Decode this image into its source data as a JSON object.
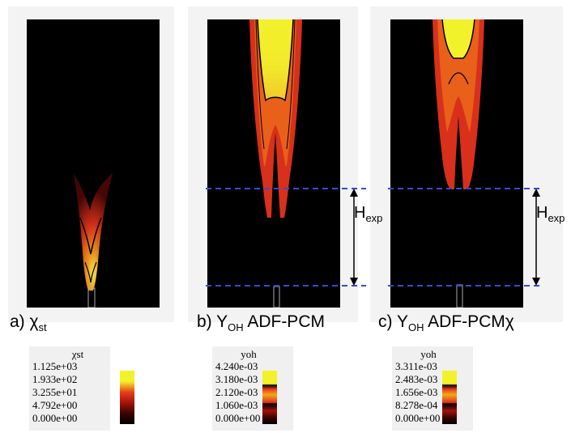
{
  "panels": [
    {
      "id": "a",
      "caption_prefix": "a) ",
      "caption_symbol": "χ",
      "caption_sub": "st",
      "caption_suffix": ""
    },
    {
      "id": "b",
      "caption_prefix": "b) Y",
      "caption_symbol": "",
      "caption_sub": "OH",
      "caption_suffix": " ADF-PCM"
    },
    {
      "id": "c",
      "caption_prefix": "c) Y",
      "caption_symbol": "",
      "caption_sub": "OH",
      "caption_suffix": " ADF-PCMχ"
    }
  ],
  "colorbars": [
    {
      "title": "χst",
      "ticks": [
        "1.125e+03",
        "1.933e+02",
        "3.255e+01",
        "4.792e+00",
        "0.000e+00"
      ]
    },
    {
      "title": "yoh",
      "ticks": [
        "4.240e-03",
        "3.180e-03",
        "2.120e-03",
        "1.060e-03",
        "0.000e+00"
      ]
    },
    {
      "title": "yoh",
      "ticks": [
        "3.311e-03",
        "2.483e-03",
        "1.656e-03",
        "8.278e-04",
        "0.000e+00"
      ]
    }
  ],
  "annotation": {
    "label": "H",
    "label_sub": "exp",
    "dash_color": "#2f4fd8"
  },
  "colors": {
    "background": "#000000",
    "hot": "#f2f22a",
    "mid": "#e8401a",
    "dark": "#7a0f06"
  }
}
